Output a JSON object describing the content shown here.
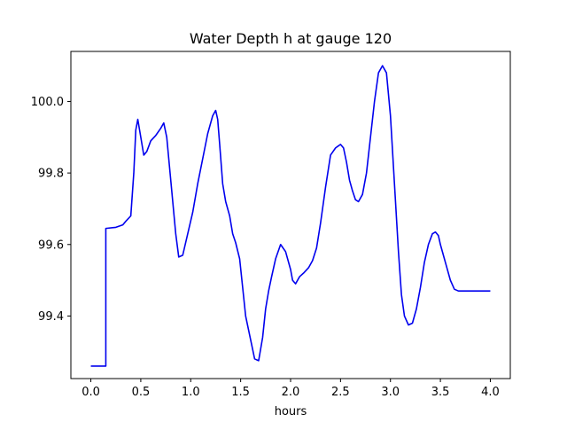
{
  "chart_data": {
    "type": "line",
    "title": "Water Depth h at gauge 120",
    "xlabel": "hours",
    "ylabel": "",
    "xlim": [
      -0.2,
      4.2
    ],
    "ylim": [
      99.225,
      100.14
    ],
    "grid": false,
    "legend": "none",
    "xticks": [
      0.0,
      0.5,
      1.0,
      1.5,
      2.0,
      2.5,
      3.0,
      3.5,
      4.0
    ],
    "xtick_labels": [
      "0.0",
      "0.5",
      "1.0",
      "1.5",
      "2.0",
      "2.5",
      "3.0",
      "3.5",
      "4.0"
    ],
    "yticks": [
      99.4,
      99.6,
      99.8,
      100.0
    ],
    "ytick_labels": [
      "99.4",
      "99.6",
      "99.8",
      "100.0"
    ],
    "series": [
      {
        "color": "#0000ee",
        "x": [
          0.0,
          0.15,
          0.15,
          0.25,
          0.32,
          0.35,
          0.4,
          0.43,
          0.45,
          0.47,
          0.5,
          0.53,
          0.56,
          0.6,
          0.65,
          0.7,
          0.73,
          0.76,
          0.8,
          0.85,
          0.88,
          0.92,
          0.97,
          1.02,
          1.07,
          1.12,
          1.17,
          1.22,
          1.25,
          1.27,
          1.29,
          1.32,
          1.35,
          1.39,
          1.42,
          1.45,
          1.49,
          1.52,
          1.55,
          1.58,
          1.61,
          1.64,
          1.68,
          1.72,
          1.75,
          1.78,
          1.81,
          1.85,
          1.9,
          1.95,
          2.0,
          2.02,
          2.05,
          2.09,
          2.13,
          2.18,
          2.22,
          2.26,
          2.3,
          2.35,
          2.4,
          2.45,
          2.5,
          2.53,
          2.56,
          2.59,
          2.62,
          2.65,
          2.68,
          2.72,
          2.76,
          2.8,
          2.84,
          2.88,
          2.92,
          2.96,
          3.0,
          3.04,
          3.08,
          3.11,
          3.14,
          3.18,
          3.22,
          3.26,
          3.3,
          3.34,
          3.38,
          3.42,
          3.45,
          3.48,
          3.5,
          3.53,
          3.56,
          3.6,
          3.64,
          3.68,
          3.72,
          3.75,
          3.78,
          3.82,
          3.86,
          3.9,
          3.94,
          3.98,
          4.0
        ],
        "y": [
          99.26,
          99.26,
          99.645,
          99.648,
          99.655,
          99.665,
          99.68,
          99.8,
          99.92,
          99.95,
          99.9,
          99.85,
          99.86,
          99.89,
          99.905,
          99.925,
          99.94,
          99.9,
          99.78,
          99.63,
          99.565,
          99.57,
          99.63,
          99.69,
          99.77,
          99.84,
          99.91,
          99.96,
          99.975,
          99.95,
          99.88,
          99.77,
          99.72,
          99.68,
          99.63,
          99.605,
          99.56,
          99.48,
          99.4,
          99.36,
          99.32,
          99.28,
          99.275,
          99.34,
          99.42,
          99.47,
          99.51,
          99.56,
          99.6,
          99.58,
          99.53,
          99.5,
          99.49,
          99.51,
          99.52,
          99.535,
          99.555,
          99.59,
          99.66,
          99.76,
          99.85,
          99.87,
          99.88,
          99.87,
          99.83,
          99.78,
          99.75,
          99.725,
          99.72,
          99.74,
          99.8,
          99.9,
          100.0,
          100.08,
          100.1,
          100.08,
          99.96,
          99.77,
          99.58,
          99.46,
          99.4,
          99.375,
          99.38,
          99.42,
          99.48,
          99.55,
          99.6,
          99.63,
          99.635,
          99.625,
          99.6,
          99.57,
          99.54,
          99.5,
          99.475,
          99.47,
          99.47,
          99.47,
          99.47,
          99.47,
          99.47,
          99.47,
          99.47,
          99.47,
          99.47
        ]
      }
    ]
  }
}
